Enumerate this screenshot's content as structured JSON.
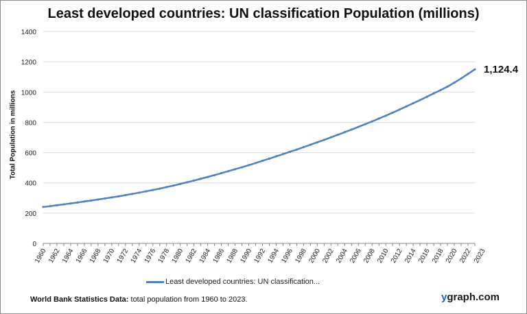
{
  "chart_data": {
    "type": "line",
    "title": "Least developed countries: UN classification Population (millions)",
    "ylabel": "Total Population  in millions",
    "xlabel": "",
    "ylim": [
      0,
      1400
    ],
    "yticks": [
      0,
      200,
      400,
      600,
      800,
      1000,
      1200,
      1400
    ],
    "grid": true,
    "legend_position": "bottom",
    "x_tick_labels": [
      "1960",
      "1962",
      "1964",
      "1966",
      "1968",
      "1970",
      "1972",
      "1974",
      "1976",
      "1978",
      "1980",
      "1982",
      "1984",
      "1986",
      "1988",
      "1990",
      "1992",
      "1994",
      "1996",
      "1998",
      "2000",
      "2002",
      "2004",
      "2006",
      "2008",
      "2010",
      "2012",
      "2014",
      "2016",
      "2018",
      "2020",
      "2022",
      "2023"
    ],
    "series": [
      {
        "name": "Least developed countries: UN classification...",
        "color": "#4f81bd",
        "x": [
          1960,
          1961,
          1962,
          1963,
          1964,
          1965,
          1966,
          1967,
          1968,
          1969,
          1970,
          1971,
          1972,
          1973,
          1974,
          1975,
          1976,
          1977,
          1978,
          1979,
          1980,
          1981,
          1982,
          1983,
          1984,
          1985,
          1986,
          1987,
          1988,
          1989,
          1990,
          1991,
          1992,
          1993,
          1994,
          1995,
          1996,
          1997,
          1998,
          1999,
          2000,
          2001,
          2002,
          2003,
          2004,
          2005,
          2006,
          2007,
          2008,
          2009,
          2010,
          2011,
          2012,
          2013,
          2014,
          2015,
          2016,
          2017,
          2018,
          2019,
          2020,
          2021,
          2022,
          2023
        ],
        "values": [
          241,
          246,
          252,
          258,
          264,
          270,
          277,
          283,
          290,
          297,
          304,
          311,
          319,
          327,
          335,
          344,
          353,
          362,
          372,
          382,
          393,
          404,
          415,
          427,
          439,
          451,
          464,
          477,
          490,
          503,
          517,
          531,
          546,
          560,
          575,
          590,
          605,
          620,
          636,
          652,
          668,
          684,
          701,
          718,
          735,
          752,
          770,
          788,
          806,
          825,
          844,
          864,
          884,
          905,
          926,
          947,
          969,
          991,
          1013,
          1036,
          1062,
          1090,
          1120,
          1150
        ]
      }
    ],
    "annotation": "1,124.4"
  },
  "footer": {
    "source_bold": "World Bank Statistics Data:",
    "source_text": " total population from 1960 to 2023.",
    "brand_y": "y",
    "brand_rest": "graph.com"
  }
}
